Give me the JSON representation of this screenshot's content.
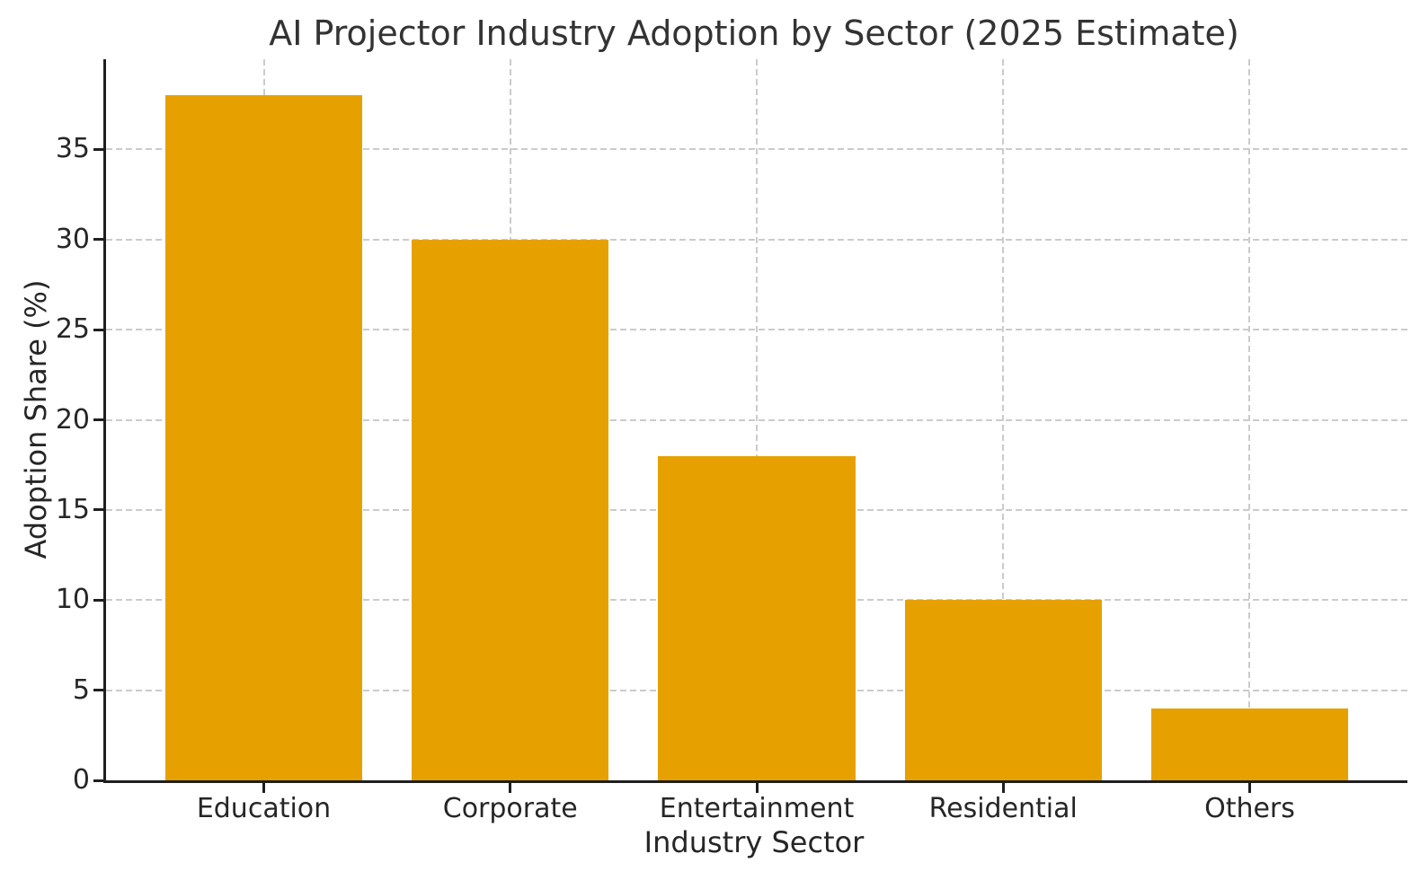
{
  "chart_data": {
    "type": "bar",
    "title": "AI Projector Industry Adoption by Sector (2025 Estimate)",
    "xlabel": "Industry Sector",
    "ylabel": "Adoption Share (%)",
    "categories": [
      "Education",
      "Corporate",
      "Entertainment",
      "Residential",
      "Others"
    ],
    "values": [
      38,
      30,
      18,
      10,
      4
    ],
    "yticks": [
      0,
      5,
      10,
      15,
      20,
      25,
      30,
      35
    ],
    "ylim": [
      0,
      40
    ],
    "xlim": [
      -0.64,
      4.64
    ],
    "bar_width": 0.8,
    "bar_color": "#e6a100",
    "grid": true,
    "grid_line_style": "dashed",
    "grid_color": "#cbcbcb",
    "legend_position": "none",
    "background": "#ffffff",
    "text_color": "#262626"
  }
}
